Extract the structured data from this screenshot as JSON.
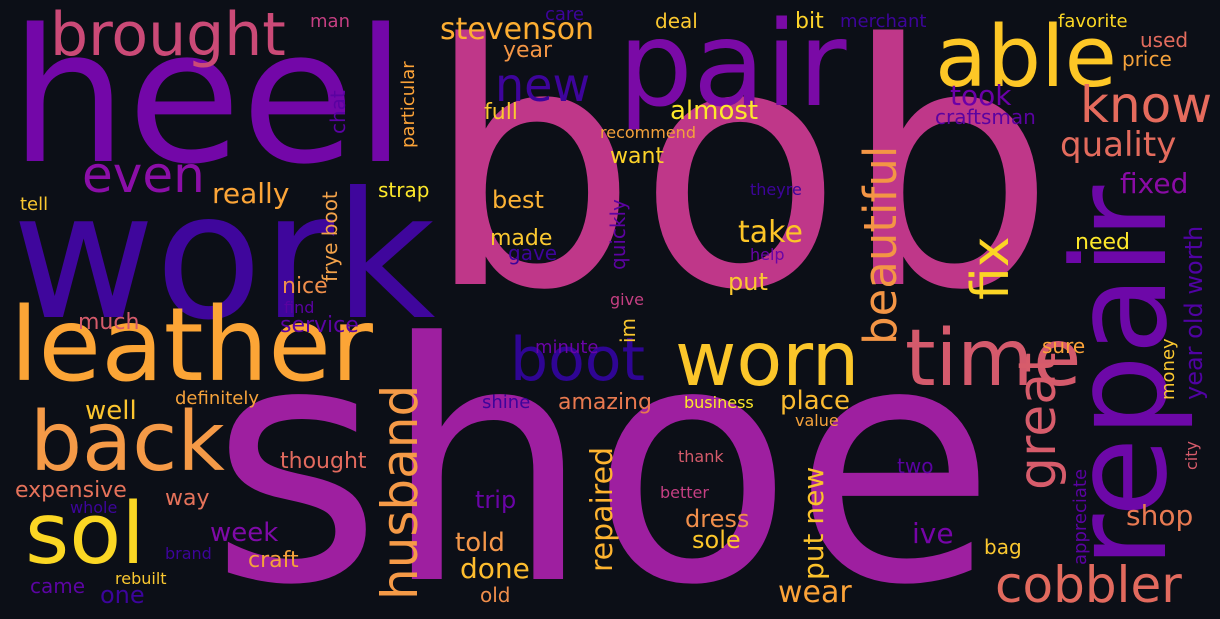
{
  "words": [
    {
      "text": "shoe",
      "color": "#9e1fa0"
    },
    {
      "text": "bob",
      "color": "#bf3789"
    },
    {
      "text": "heel",
      "color": "#7307a8"
    },
    {
      "text": "work",
      "color": "#3f069c"
    },
    {
      "text": "pair",
      "color": "#7a0aa6"
    },
    {
      "text": "leather",
      "color": "#fca536"
    },
    {
      "text": "repair",
      "color": "#6d08a8"
    },
    {
      "text": "back",
      "color": "#f59a47"
    },
    {
      "text": "able",
      "color": "#fdc726"
    },
    {
      "text": "worn",
      "color": "#fbc62a"
    },
    {
      "text": "sol",
      "color": "#fbd724"
    },
    {
      "text": "time",
      "color": "#d45a6c"
    },
    {
      "text": "brought",
      "color": "#cb4a77"
    },
    {
      "text": "even",
      "color": "#8b0ea8"
    },
    {
      "text": "boot",
      "color": "#2f0594"
    },
    {
      "text": "husband",
      "color": "#f59a47"
    },
    {
      "text": "know",
      "color": "#e56b5d"
    },
    {
      "text": "cobbler",
      "color": "#e26a5e"
    },
    {
      "text": "beautiful",
      "color": "#f39545"
    },
    {
      "text": "fix",
      "color": "#fbd525"
    },
    {
      "text": "great",
      "color": "#d75c6b"
    },
    {
      "text": "new",
      "color": "#3e049c"
    },
    {
      "text": "quality",
      "color": "#e36b5d"
    },
    {
      "text": "stevenson",
      "color": "#fdae32"
    },
    {
      "text": "repaired",
      "color": "#fdb32f"
    },
    {
      "text": "took",
      "color": "#6b00a8"
    },
    {
      "text": "fixed",
      "color": "#8a0ba5"
    },
    {
      "text": "shop",
      "color": "#e87a52"
    },
    {
      "text": "really",
      "color": "#fca538"
    },
    {
      "text": "take",
      "color": "#fdc527"
    },
    {
      "text": "almost",
      "color": "#fde82a"
    },
    {
      "text": "year old worth",
      "color": "#5002a2"
    },
    {
      "text": "wear",
      "color": "#fca338"
    },
    {
      "text": "put new",
      "color": "#fbc22b"
    },
    {
      "text": "done",
      "color": "#fdbd2e"
    },
    {
      "text": "told",
      "color": "#f4974a"
    },
    {
      "text": "dress",
      "color": "#f08e4b"
    },
    {
      "text": "week",
      "color": "#7f0aa7"
    },
    {
      "text": "frye boot",
      "color": "#f3a24a"
    },
    {
      "text": "ive",
      "color": "#7604a7"
    },
    {
      "text": "place",
      "color": "#fbbb30"
    },
    {
      "text": "amazing",
      "color": "#e8794f"
    },
    {
      "text": "made",
      "color": "#fbc830"
    },
    {
      "text": "best",
      "color": "#fcb235"
    },
    {
      "text": "want",
      "color": "#fdd32a"
    },
    {
      "text": "put",
      "color": "#fbc830"
    },
    {
      "text": "need",
      "color": "#fde82a"
    },
    {
      "text": "sure",
      "color": "#fca338"
    },
    {
      "text": "sole",
      "color": "#fdc72a"
    },
    {
      "text": "well",
      "color": "#fcc52f"
    },
    {
      "text": "much",
      "color": "#d55b6b"
    },
    {
      "text": "nice",
      "color": "#f08f4b"
    },
    {
      "text": "service",
      "color": "#5c04a3"
    },
    {
      "text": "thought",
      "color": "#e26a5e"
    },
    {
      "text": "expensive",
      "color": "#e5725a"
    },
    {
      "text": "way",
      "color": "#e5725a"
    },
    {
      "text": "craft",
      "color": "#f5a23b"
    },
    {
      "text": "trip",
      "color": "#6a04a6"
    },
    {
      "text": "one",
      "color": "#3c049c"
    },
    {
      "text": "came",
      "color": "#5c04a3"
    },
    {
      "text": "old",
      "color": "#f08e4b"
    },
    {
      "text": "bag",
      "color": "#fbc830"
    },
    {
      "text": "chat",
      "color": "#5a02a1"
    },
    {
      "text": "quickly",
      "color": "#5d02a2"
    },
    {
      "text": "im",
      "color": "#fbc830"
    },
    {
      "text": "particular",
      "color": "#fca338"
    },
    {
      "text": "appreciate",
      "color": "#5a02a1"
    },
    {
      "text": "money",
      "color": "#fbc830"
    },
    {
      "text": "city",
      "color": "#d55b6b"
    },
    {
      "text": "craftsman",
      "color": "#5a02a1"
    },
    {
      "text": "price",
      "color": "#f5a23b"
    },
    {
      "text": "used",
      "color": "#e36b5d"
    },
    {
      "text": "favorite",
      "color": "#fbd724"
    },
    {
      "text": "merchant",
      "color": "#3d049b"
    },
    {
      "text": "bit",
      "color": "#fdd32a"
    },
    {
      "text": "deal",
      "color": "#fbc830"
    },
    {
      "text": "care",
      "color": "#3d049b"
    },
    {
      "text": "man",
      "color": "#c53f82"
    },
    {
      "text": "year",
      "color": "#f39545"
    },
    {
      "text": "full",
      "color": "#fbc830"
    },
    {
      "text": "recommend",
      "color": "#f5a23b"
    },
    {
      "text": "strap",
      "color": "#fde82a"
    },
    {
      "text": "tell",
      "color": "#fbc830"
    },
    {
      "text": "gave",
      "color": "#3d049b"
    },
    {
      "text": "theyre",
      "color": "#3d049b"
    },
    {
      "text": "help",
      "color": "#6a04a6"
    },
    {
      "text": "find",
      "color": "#5a02a1"
    },
    {
      "text": "give",
      "color": "#c53f82"
    },
    {
      "text": "minute",
      "color": "#6a04a6"
    },
    {
      "text": "shine",
      "color": "#3d049b"
    },
    {
      "text": "definitely",
      "color": "#f5a23b"
    },
    {
      "text": "business",
      "color": "#fde82a"
    },
    {
      "text": "value",
      "color": "#f5a23b"
    },
    {
      "text": "thank",
      "color": "#d55b6b"
    },
    {
      "text": "two",
      "color": "#5a02a1"
    },
    {
      "text": "better",
      "color": "#c53f82"
    },
    {
      "text": "whole",
      "color": "#3d049b"
    },
    {
      "text": "brand",
      "color": "#3d049b"
    },
    {
      "text": "rebuilt",
      "color": "#fbc830"
    }
  ]
}
